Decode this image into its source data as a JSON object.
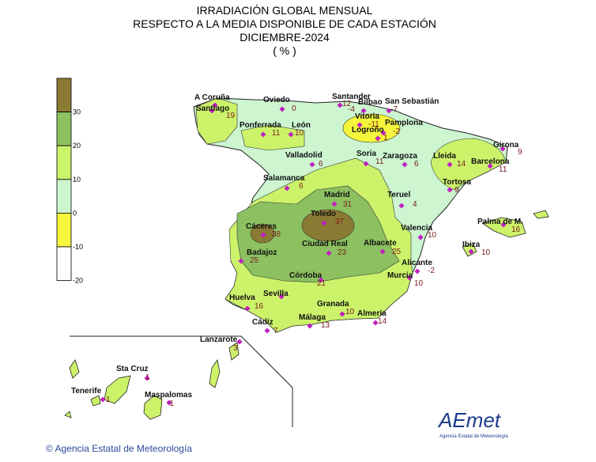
{
  "header": {
    "lines": [
      "IRRADIACIÓN GLOBAL MENSUAL",
      "RESPECTO A LA MEDIA DISPONIBLE DE CADA ESTACIÓN",
      "DICIEMBRE-2024",
      "( % )"
    ]
  },
  "legend": {
    "ticks": [
      "30",
      "20",
      "10",
      "0",
      "-10",
      "-20"
    ],
    "colors": [
      "#8a7a34",
      "#8cc060",
      "#ccf26a",
      "#ccf5d0",
      "#f5f53c",
      "#ffffff"
    ]
  },
  "stations": [
    {
      "name": "A Coruña"
    },
    {
      "name": "Santiago",
      "value": "19"
    },
    {
      "name": "Oviedo",
      "value": "0"
    },
    {
      "name": "Santander",
      "value": "12"
    },
    {
      "name": "Bilbao",
      "value": "-4"
    },
    {
      "name": "San Sebastián",
      "value": "-7"
    },
    {
      "name": "Vitoria",
      "value": "-11"
    },
    {
      "name": "Pamplona",
      "value": "-2"
    },
    {
      "name": "Logroño",
      "value": "1"
    },
    {
      "name": "Ponferrada",
      "value": "11"
    },
    {
      "name": "León",
      "value": "10"
    },
    {
      "name": "Valladolid",
      "value": "6"
    },
    {
      "name": "Soria",
      "value": "11"
    },
    {
      "name": "Zaragoza",
      "value": "6"
    },
    {
      "name": "Lleida",
      "value": "14"
    },
    {
      "name": "Girona",
      "value": "9"
    },
    {
      "name": "Barcelona",
      "value": "11"
    },
    {
      "name": "Tortosa",
      "value": "9"
    },
    {
      "name": "Salamanca",
      "value": "6"
    },
    {
      "name": "Madrid",
      "value": "31"
    },
    {
      "name": "Toledo",
      "value": "37"
    },
    {
      "name": "Teruel",
      "value": "4"
    },
    {
      "name": "Palma de M.",
      "value": "16"
    },
    {
      "name": "Valencia",
      "value": "10"
    },
    {
      "name": "Ibiza",
      "value": "10"
    },
    {
      "name": "Cáceres",
      "value": "38"
    },
    {
      "name": "Ciudad Real",
      "value": "23"
    },
    {
      "name": "Albacete",
      "value": "25"
    },
    {
      "name": "Badajoz",
      "value": "25"
    },
    {
      "name": "Alicante",
      "value": "-2"
    },
    {
      "name": "Córdoba",
      "value": "21"
    },
    {
      "name": "Murcia",
      "value": "10"
    },
    {
      "name": "Sevilla"
    },
    {
      "name": "Huelva",
      "value": "16"
    },
    {
      "name": "Granada",
      "value": "10"
    },
    {
      "name": "Almería",
      "value": "14"
    },
    {
      "name": "Málaga",
      "value": "13"
    },
    {
      "name": "Cádiz",
      "value": "7"
    },
    {
      "name": "Lanzarote",
      "value": "3"
    },
    {
      "name": "Sta Cruz",
      "value": "1"
    },
    {
      "name": "Tenerife",
      "value": "1"
    },
    {
      "name": "Maspalomas",
      "value": "-1"
    }
  ],
  "footer": {
    "copyright": "© Agencia Estatal de Meteorología",
    "logo": "AEmet",
    "logo_caption": "Agencia Estatal de Meteorología"
  }
}
